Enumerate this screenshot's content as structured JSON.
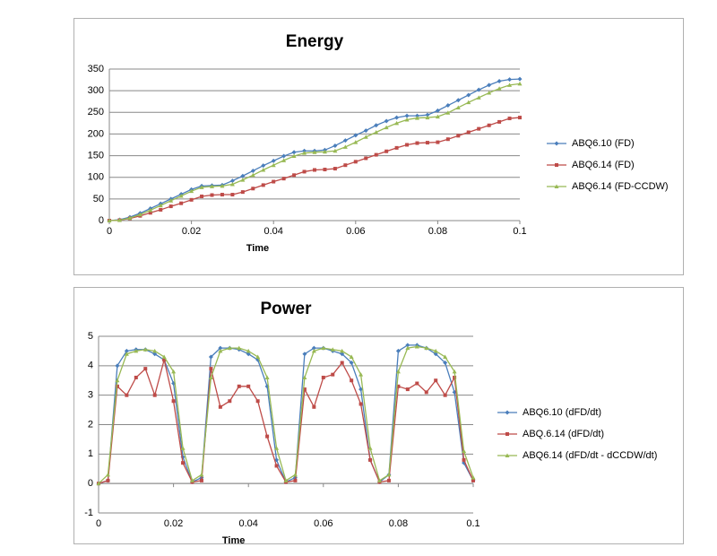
{
  "chart_data": [
    {
      "type": "line",
      "title": "Energy",
      "x_label": "Time",
      "x": [
        0,
        0.0025,
        0.005,
        0.0075,
        0.01,
        0.0125,
        0.015,
        0.0175,
        0.02,
        0.0225,
        0.025,
        0.0275,
        0.03,
        0.0325,
        0.035,
        0.0375,
        0.04,
        0.0425,
        0.045,
        0.0475,
        0.05,
        0.0525,
        0.055,
        0.0575,
        0.06,
        0.0625,
        0.065,
        0.0675,
        0.07,
        0.0725,
        0.075,
        0.0775,
        0.08,
        0.0825,
        0.085,
        0.0875,
        0.09,
        0.0925,
        0.095,
        0.0975,
        0.1
      ],
      "series": [
        {
          "name": "ABQ6.10 (FD)",
          "color": "#4a7ebb",
          "marker": "diamond",
          "values": [
            0,
            2,
            8,
            17,
            28,
            39,
            50,
            61,
            72,
            80,
            81,
            82,
            92,
            103,
            115,
            127,
            138,
            149,
            158,
            161,
            161,
            163,
            173,
            185,
            197,
            208,
            220,
            230,
            238,
            242,
            242,
            244,
            254,
            266,
            278,
            290,
            302,
            313,
            322,
            326,
            327
          ]
        },
        {
          "name": "ABQ6.14 (FD)",
          "color": "#be4b48",
          "marker": "square",
          "values": [
            0,
            1,
            5,
            11,
            18,
            25,
            33,
            40,
            48,
            56,
            59,
            60,
            60,
            66,
            74,
            82,
            90,
            97,
            105,
            113,
            117,
            118,
            120,
            128,
            136,
            144,
            152,
            160,
            168,
            175,
            179,
            180,
            181,
            188,
            196,
            204,
            212,
            220,
            228,
            236,
            238
          ]
        },
        {
          "name": "ABQ6.14 (FD-CCDW)",
          "color": "#98b954",
          "marker": "triangle",
          "values": [
            0,
            1,
            6,
            14,
            24,
            35,
            46,
            57,
            68,
            77,
            79,
            80,
            84,
            94,
            105,
            117,
            128,
            139,
            149,
            156,
            158,
            159,
            161,
            170,
            181,
            193,
            204,
            215,
            225,
            233,
            237,
            238,
            240,
            249,
            261,
            273,
            284,
            295,
            305,
            313,
            316
          ]
        }
      ],
      "xlim": [
        0,
        0.1
      ],
      "xticks": [
        0,
        0.02,
        0.04,
        0.06,
        0.08,
        0.1
      ],
      "ylim": [
        0,
        350
      ],
      "yticks": [
        0,
        50,
        100,
        150,
        200,
        250,
        300,
        350
      ],
      "grid": true,
      "legend": "right"
    },
    {
      "type": "line",
      "title": "Power",
      "x_label": "Time",
      "x": [
        0,
        0.0025,
        0.005,
        0.0075,
        0.01,
        0.0125,
        0.015,
        0.0175,
        0.02,
        0.0225,
        0.025,
        0.0275,
        0.03,
        0.0325,
        0.035,
        0.0375,
        0.04,
        0.0425,
        0.045,
        0.0475,
        0.05,
        0.0525,
        0.055,
        0.0575,
        0.06,
        0.0625,
        0.065,
        0.0675,
        0.07,
        0.0725,
        0.075,
        0.0775,
        0.08,
        0.0825,
        0.085,
        0.0875,
        0.09,
        0.0925,
        0.095,
        0.0975,
        0.1
      ],
      "series": [
        {
          "name": "ABQ6.10 (dFD/dt)",
          "color": "#4a7ebb",
          "marker": "diamond",
          "values": [
            0,
            0.1,
            4.0,
            4.5,
            4.55,
            4.55,
            4.4,
            4.2,
            3.4,
            0.9,
            0.05,
            0.2,
            4.3,
            4.6,
            4.6,
            4.55,
            4.4,
            4.2,
            3.3,
            0.8,
            0.05,
            0.2,
            4.4,
            4.6,
            4.6,
            4.5,
            4.4,
            4.1,
            3.2,
            0.8,
            0.05,
            0.3,
            4.5,
            4.7,
            4.7,
            4.6,
            4.4,
            4.1,
            3.1,
            0.7,
            0.1
          ]
        },
        {
          "name": "ABQ.6.14 (dFD/dt)",
          "color": "#be4b48",
          "marker": "square",
          "values": [
            0,
            0.1,
            3.3,
            3.0,
            3.6,
            3.9,
            3.0,
            4.2,
            2.8,
            0.7,
            0.05,
            0.1,
            3.9,
            2.6,
            2.8,
            3.3,
            3.3,
            2.8,
            1.6,
            0.6,
            0.05,
            0.1,
            3.2,
            2.6,
            3.6,
            3.7,
            4.1,
            3.5,
            2.7,
            0.8,
            0.05,
            0.1,
            3.3,
            3.2,
            3.4,
            3.1,
            3.5,
            3.0,
            3.6,
            0.8,
            0.1
          ]
        },
        {
          "name": "ABQ6.14 (dFD/dt - dCCDW/dt)",
          "color": "#98b954",
          "marker": "triangle",
          "values": [
            0,
            0.3,
            3.5,
            4.4,
            4.5,
            4.55,
            4.5,
            4.3,
            3.8,
            1.2,
            0.1,
            0.3,
            3.6,
            4.5,
            4.6,
            4.6,
            4.5,
            4.3,
            3.6,
            1.2,
            0.1,
            0.3,
            3.6,
            4.5,
            4.6,
            4.55,
            4.5,
            4.3,
            3.7,
            1.2,
            0.1,
            0.3,
            3.8,
            4.6,
            4.65,
            4.6,
            4.5,
            4.3,
            3.8,
            1.1,
            0.2
          ]
        }
      ],
      "xlim": [
        0,
        0.1
      ],
      "xticks": [
        0,
        0.02,
        0.04,
        0.06,
        0.08,
        0.1
      ],
      "ylim": [
        -1,
        5
      ],
      "yticks": [
        -1,
        0,
        1,
        2,
        3,
        4,
        5
      ],
      "grid": true,
      "legend": "right"
    }
  ]
}
